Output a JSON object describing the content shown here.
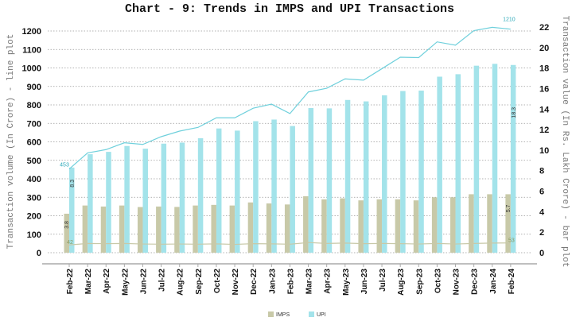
{
  "chart_data": {
    "type": "bar",
    "title": "Chart - 9: Trends in IMPS and UPI Transactions",
    "ylabel_left": "Transaction volume (In Crore) - line plot",
    "ylabel_right": "Transaction value (In Rs. Lakh Crore) - bar plot",
    "ylim_left": [
      0,
      1200
    ],
    "yticks_left": [
      0,
      100,
      200,
      300,
      400,
      500,
      600,
      700,
      800,
      900,
      1000,
      1100,
      1200
    ],
    "ylim_right": [
      0,
      22
    ],
    "yticks_right": [
      0,
      2,
      4,
      6,
      8,
      10,
      12,
      14,
      16,
      18,
      20,
      22
    ],
    "grid": true,
    "legend_placement": "bottom",
    "categories": [
      "Feb-22",
      "Mar-22",
      "Apr-22",
      "May-22",
      "Jun-22",
      "Jul-22",
      "Aug-22",
      "Sep-22",
      "Oct-22",
      "Nov-22",
      "Dec-22",
      "Jan-23",
      "Feb-23",
      "Mar-23",
      "Apr-23",
      "May-23",
      "Jun-23",
      "Jul-23",
      "Aug-23",
      "Sep-23",
      "Oct-23",
      "Nov-23",
      "Dec-23",
      "Jan-24",
      "Feb-24"
    ],
    "bar_series": [
      {
        "name": "IMPS",
        "color": "#c8c9a8",
        "values": [
          3.8,
          4.6,
          4.5,
          4.6,
          4.45,
          4.5,
          4.46,
          4.6,
          4.66,
          4.6,
          4.9,
          4.8,
          4.7,
          5.5,
          5.2,
          5.3,
          5.1,
          5.2,
          5.2,
          5.1,
          5.4,
          5.4,
          5.7,
          5.7,
          5.7
        ]
      },
      {
        "name": "UPI",
        "color": "#a3e3ea",
        "values": [
          8.3,
          9.6,
          9.83,
          10.4,
          10.14,
          10.63,
          10.73,
          11.16,
          12.11,
          11.9,
          12.82,
          12.98,
          12.35,
          14.1,
          14.07,
          14.89,
          14.75,
          15.34,
          15.76,
          15.8,
          17.16,
          17.4,
          18.23,
          18.41,
          18.3
        ]
      }
    ],
    "line_series": [
      {
        "name": "IMPS",
        "color": "#c8c9a8",
        "values": [
          42,
          50,
          49,
          50,
          47,
          46,
          47,
          46,
          48,
          45,
          49,
          48,
          46,
          55,
          50,
          52,
          49,
          50,
          49,
          47,
          50,
          47,
          50,
          52,
          53
        ]
      },
      {
        "name": "UPI",
        "color": "#6fd0dc",
        "values": [
          453,
          540,
          558,
          595,
          586,
          628,
          658,
          678,
          730,
          730,
          782,
          804,
          753,
          870,
          890,
          941,
          934,
          996,
          1058,
          1056,
          1141,
          1123,
          1202,
          1220,
          1210
        ]
      }
    ],
    "data_labels": {
      "upi_vol_first": "453",
      "upi_vol_last": "1210",
      "upi_val_first": "8.3",
      "imps_val_first": "3.8",
      "imps_vol_first": "42",
      "imps_val_last": "5.7",
      "imps_vol_last": "53",
      "upi_val_last": "18.3"
    }
  }
}
